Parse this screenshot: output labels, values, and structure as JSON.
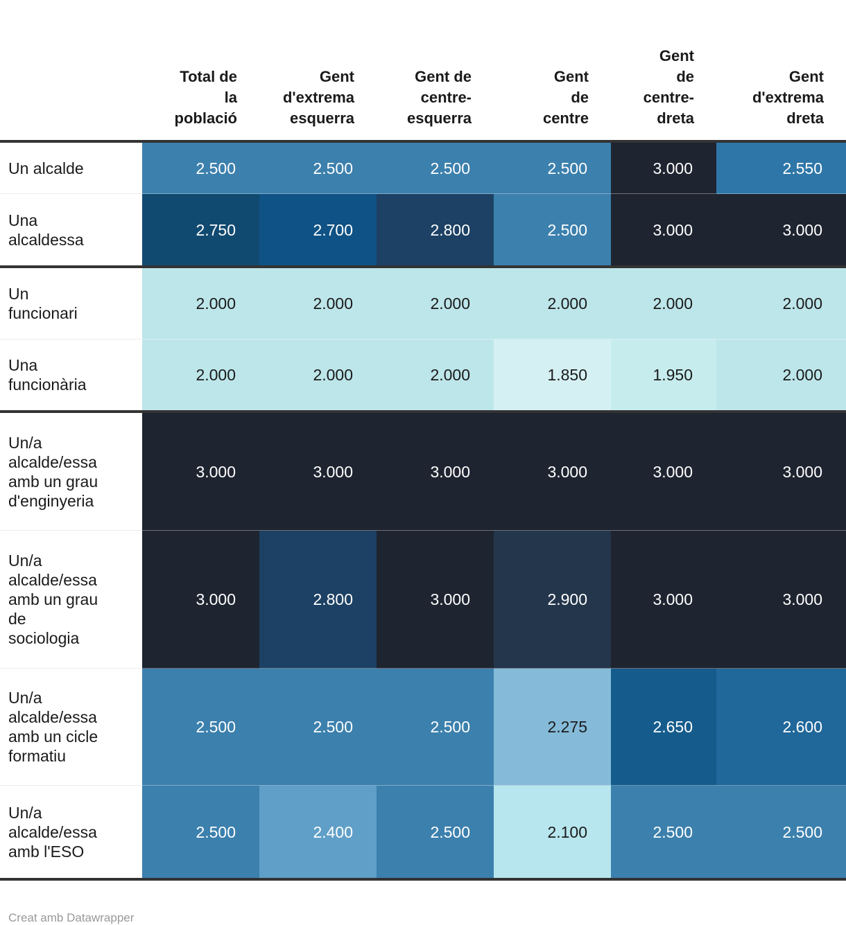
{
  "chart_data": {
    "type": "heatmap",
    "title": "",
    "legend_position": "none",
    "grid": false,
    "value_range": [
      1850,
      3000
    ],
    "columns": [
      {
        "label": "Total de la població",
        "display": "Total de\nla\npoblació"
      },
      {
        "label": "Gent d'extrema esquerra",
        "display": "Gent\nd'extrema\nesquerra"
      },
      {
        "label": "Gent de centre-esquerra",
        "display": "Gent de\ncentre-\nesquerra"
      },
      {
        "label": "Gent de centre",
        "display": "Gent\nde\ncentre"
      },
      {
        "label": "Gent de centre-dreta",
        "display": "Gent\nde\ncentre-\ndreta"
      },
      {
        "label": "Gent d'extrema dreta",
        "display": "Gent\nd'extrema\ndreta"
      }
    ],
    "rows": [
      {
        "label": "Un alcalde",
        "display": "Un alcalde",
        "group_start": false,
        "values": [
          2500,
          2500,
          2500,
          2500,
          3000,
          2550
        ],
        "formatted": [
          "2.500",
          "2.500",
          "2.500",
          "2.500",
          "3.000",
          "2.550"
        ]
      },
      {
        "label": "Una alcaldessa",
        "display": "Una\nalcaldessa",
        "group_start": false,
        "values": [
          2750,
          2700,
          2800,
          2500,
          3000,
          3000
        ],
        "formatted": [
          "2.750",
          "2.700",
          "2.800",
          "2.500",
          "3.000",
          "3.000"
        ]
      },
      {
        "label": "Un funcionari",
        "display": "Un\nfuncionari",
        "group_start": true,
        "values": [
          2000,
          2000,
          2000,
          2000,
          2000,
          2000
        ],
        "formatted": [
          "2.000",
          "2.000",
          "2.000",
          "2.000",
          "2.000",
          "2.000"
        ]
      },
      {
        "label": "Una funcionària",
        "display": "Una\nfuncionària",
        "group_start": false,
        "values": [
          2000,
          2000,
          2000,
          1850,
          1950,
          2000
        ],
        "formatted": [
          "2.000",
          "2.000",
          "2.000",
          "1.850",
          "1.950",
          "2.000"
        ]
      },
      {
        "label": "Un/a alcalde/essa amb un grau d'enginyeria",
        "display": "Un/a\nalcalde/essa\namb un grau\nd'enginyeria",
        "group_start": true,
        "values": [
          3000,
          3000,
          3000,
          3000,
          3000,
          3000
        ],
        "formatted": [
          "3.000",
          "3.000",
          "3.000",
          "3.000",
          "3.000",
          "3.000"
        ]
      },
      {
        "label": "Un/a alcalde/essa amb un grau de sociologia",
        "display": "Un/a\nalcalde/essa\namb un grau\nde\nsociologia",
        "group_start": false,
        "values": [
          3000,
          2800,
          3000,
          2900,
          3000,
          3000
        ],
        "formatted": [
          "3.000",
          "2.800",
          "3.000",
          "2.900",
          "3.000",
          "3.000"
        ]
      },
      {
        "label": "Un/a alcalde/essa amb un cicle formatiu",
        "display": "Un/a\nalcalde/essa\namb un cicle\nformatiu",
        "group_start": false,
        "values": [
          2500,
          2500,
          2500,
          2275,
          2650,
          2600
        ],
        "formatted": [
          "2.500",
          "2.500",
          "2.500",
          "2.275",
          "2.650",
          "2.600"
        ]
      },
      {
        "label": "Un/a alcalde/essa amb l'ESO",
        "display": "Un/a\nalcalde/essa\namb l'ESO",
        "group_start": false,
        "values": [
          2500,
          2400,
          2500,
          2100,
          2500,
          2500
        ],
        "formatted": [
          "2.500",
          "2.400",
          "2.500",
          "2.100",
          "2.500",
          "2.500"
        ]
      }
    ],
    "color_scale": {
      "1.850": {
        "bg": "#d5f0f3",
        "text": "#1a1a1a"
      },
      "1.950": {
        "bg": "#c7ecee",
        "text": "#1a1a1a"
      },
      "2.000": {
        "bg": "#bde6ea",
        "text": "#1a1a1a"
      },
      "2.100": {
        "bg": "#b7e6ee",
        "text": "#1a1a1a"
      },
      "2.275": {
        "bg": "#85bbd9",
        "text": "#1a1a1a"
      },
      "2.400": {
        "bg": "#5f9fc8",
        "text": "#ffffff"
      },
      "2.500": {
        "bg": "#3c80ad",
        "text": "#ffffff"
      },
      "2.550": {
        "bg": "#2e76a8",
        "text": "#ffffff"
      },
      "2.600": {
        "bg": "#20679a",
        "text": "#ffffff"
      },
      "2.650": {
        "bg": "#155c8d",
        "text": "#ffffff"
      },
      "2.700": {
        "bg": "#0f5285",
        "text": "#ffffff"
      },
      "2.750": {
        "bg": "#114a71",
        "text": "#ffffff"
      },
      "2.800": {
        "bg": "#1c4164",
        "text": "#ffffff"
      },
      "2.900": {
        "bg": "#24364b",
        "text": "#ffffff"
      },
      "3.000": {
        "bg": "#1e2430",
        "text": "#ffffff"
      }
    }
  },
  "footer": {
    "credit": "Creat amb Datawrapper"
  }
}
